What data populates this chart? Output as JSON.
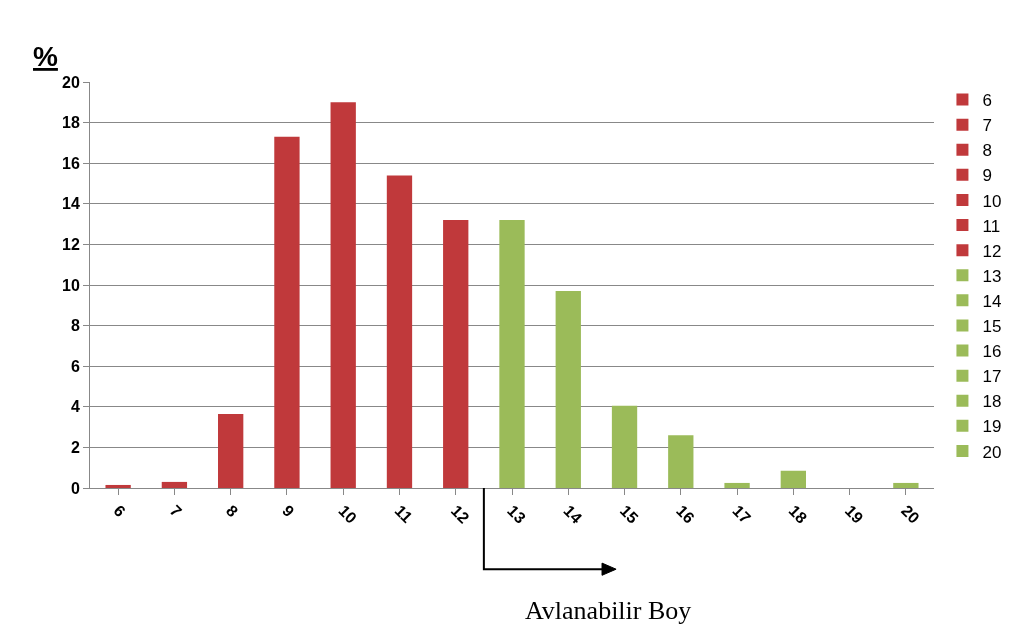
{
  "chart_data": {
    "type": "bar",
    "ylabel": "%",
    "categories": [
      "6",
      "7",
      "8",
      "9",
      "10",
      "11",
      "12",
      "13",
      "14",
      "15",
      "16",
      "17",
      "18",
      "19",
      "20"
    ],
    "series": [
      {
        "name": "6",
        "color": "#c0393b",
        "values": [
          0.15,
          null,
          null,
          null,
          null,
          null,
          null,
          null,
          null,
          null,
          null,
          null,
          null,
          null,
          null
        ]
      },
      {
        "name": "7",
        "color": "#c0393b",
        "values": [
          null,
          0.3,
          null,
          null,
          null,
          null,
          null,
          null,
          null,
          null,
          null,
          null,
          null,
          null,
          null
        ]
      },
      {
        "name": "8",
        "color": "#c0393b",
        "values": [
          null,
          null,
          3.65,
          null,
          null,
          null,
          null,
          null,
          null,
          null,
          null,
          null,
          null,
          null,
          null
        ]
      },
      {
        "name": "9",
        "color": "#c0393b",
        "values": [
          null,
          null,
          null,
          17.3,
          null,
          null,
          null,
          null,
          null,
          null,
          null,
          null,
          null,
          null,
          null
        ]
      },
      {
        "name": "10",
        "color": "#c0393b",
        "values": [
          null,
          null,
          null,
          null,
          19.0,
          null,
          null,
          null,
          null,
          null,
          null,
          null,
          null,
          null,
          null
        ]
      },
      {
        "name": "11",
        "color": "#c0393b",
        "values": [
          null,
          null,
          null,
          null,
          null,
          15.4,
          null,
          null,
          null,
          null,
          null,
          null,
          null,
          null,
          null
        ]
      },
      {
        "name": "12",
        "color": "#c0393b",
        "values": [
          null,
          null,
          null,
          null,
          null,
          null,
          13.2,
          null,
          null,
          null,
          null,
          null,
          null,
          null,
          null
        ]
      },
      {
        "name": "13",
        "color": "#9bbb59",
        "values": [
          null,
          null,
          null,
          null,
          null,
          null,
          null,
          13.2,
          null,
          null,
          null,
          null,
          null,
          null,
          null
        ]
      },
      {
        "name": "14",
        "color": "#9bbb59",
        "values": [
          null,
          null,
          null,
          null,
          null,
          null,
          null,
          null,
          9.7,
          null,
          null,
          null,
          null,
          null,
          null
        ]
      },
      {
        "name": "15",
        "color": "#9bbb59",
        "values": [
          null,
          null,
          null,
          null,
          null,
          null,
          null,
          null,
          null,
          4.05,
          null,
          null,
          null,
          null,
          null
        ]
      },
      {
        "name": "16",
        "color": "#9bbb59",
        "values": [
          null,
          null,
          null,
          null,
          null,
          null,
          null,
          null,
          null,
          null,
          2.6,
          null,
          null,
          null,
          null
        ]
      },
      {
        "name": "17",
        "color": "#9bbb59",
        "values": [
          null,
          null,
          null,
          null,
          null,
          null,
          null,
          null,
          null,
          null,
          null,
          0.25,
          null,
          null,
          null
        ]
      },
      {
        "name": "18",
        "color": "#9bbb59",
        "values": [
          null,
          null,
          null,
          null,
          null,
          null,
          null,
          null,
          null,
          null,
          null,
          null,
          0.85,
          null,
          null
        ]
      },
      {
        "name": "19",
        "color": "#9bbb59",
        "values": [
          null,
          null,
          null,
          null,
          null,
          null,
          null,
          null,
          null,
          null,
          null,
          null,
          null,
          0,
          null
        ]
      },
      {
        "name": "20",
        "color": "#9bbb59",
        "values": [
          null,
          null,
          null,
          null,
          null,
          null,
          null,
          null,
          null,
          null,
          null,
          null,
          null,
          null,
          0.25
        ]
      }
    ],
    "ylim": [
      0,
      20
    ],
    "yticks": [
      0,
      2,
      4,
      6,
      8,
      10,
      12,
      14,
      16,
      18,
      20
    ],
    "grid": "y",
    "legend": "right",
    "annotations": [
      "Avlanabilir Boy"
    ]
  }
}
